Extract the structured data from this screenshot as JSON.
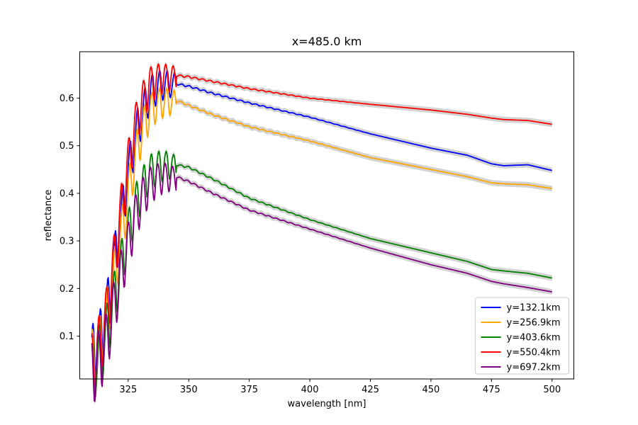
{
  "chart_data": {
    "type": "line",
    "title": "x=485.0 km",
    "xlabel": "wavelength [nm]",
    "ylabel": "reflectance",
    "xlim": [
      305,
      509
    ],
    "ylim": [
      0.01,
      0.6975
    ],
    "xticks": [
      325,
      350,
      375,
      400,
      425,
      450,
      475,
      500
    ],
    "yticks": [
      0.1,
      0.2,
      0.3,
      0.4,
      0.5,
      0.6
    ],
    "grid": false,
    "legend_position": "lower-right",
    "band_color": "#d3d3d3",
    "series": [
      {
        "name": "y=132.1km",
        "color": "#0000ff",
        "points": [
          [
            310,
            0.05
          ],
          [
            313,
            0.08
          ],
          [
            316,
            0.14
          ],
          [
            319,
            0.24
          ],
          [
            322,
            0.34
          ],
          [
            325,
            0.44
          ],
          [
            328,
            0.52
          ],
          [
            331,
            0.57
          ],
          [
            334,
            0.61
          ],
          [
            337,
            0.625
          ],
          [
            340,
            0.63
          ],
          [
            345,
            0.63
          ],
          [
            350,
            0.625
          ],
          [
            360,
            0.61
          ],
          [
            375,
            0.59
          ],
          [
            400,
            0.56
          ],
          [
            425,
            0.525
          ],
          [
            450,
            0.495
          ],
          [
            465,
            0.48
          ],
          [
            475,
            0.462
          ],
          [
            480,
            0.458
          ],
          [
            490,
            0.46
          ],
          [
            500,
            0.448
          ]
        ]
      },
      {
        "name": "y=256.9km",
        "color": "#ffa500",
        "points": [
          [
            310,
            0.045
          ],
          [
            313,
            0.075
          ],
          [
            316,
            0.13
          ],
          [
            319,
            0.22
          ],
          [
            322,
            0.31
          ],
          [
            325,
            0.4
          ],
          [
            328,
            0.48
          ],
          [
            331,
            0.54
          ],
          [
            334,
            0.575
          ],
          [
            337,
            0.59
          ],
          [
            340,
            0.595
          ],
          [
            345,
            0.595
          ],
          [
            350,
            0.585
          ],
          [
            360,
            0.565
          ],
          [
            375,
            0.54
          ],
          [
            400,
            0.51
          ],
          [
            425,
            0.475
          ],
          [
            450,
            0.45
          ],
          [
            465,
            0.435
          ],
          [
            475,
            0.422
          ],
          [
            480,
            0.42
          ],
          [
            490,
            0.418
          ],
          [
            500,
            0.41
          ]
        ]
      },
      {
        "name": "y=403.6km",
        "color": "#008000",
        "points": [
          [
            310,
            0.04
          ],
          [
            313,
            0.065
          ],
          [
            316,
            0.11
          ],
          [
            319,
            0.18
          ],
          [
            322,
            0.25
          ],
          [
            325,
            0.32
          ],
          [
            328,
            0.38
          ],
          [
            331,
            0.42
          ],
          [
            334,
            0.45
          ],
          [
            337,
            0.46
          ],
          [
            340,
            0.465
          ],
          [
            345,
            0.46
          ],
          [
            350,
            0.455
          ],
          [
            360,
            0.43
          ],
          [
            375,
            0.39
          ],
          [
            400,
            0.345
          ],
          [
            425,
            0.305
          ],
          [
            450,
            0.275
          ],
          [
            465,
            0.257
          ],
          [
            475,
            0.24
          ],
          [
            480,
            0.237
          ],
          [
            490,
            0.232
          ],
          [
            500,
            0.222
          ]
        ]
      },
      {
        "name": "y=550.4km",
        "color": "#ff0000",
        "points": [
          [
            310,
            0.05
          ],
          [
            313,
            0.09
          ],
          [
            316,
            0.15
          ],
          [
            319,
            0.26
          ],
          [
            322,
            0.37
          ],
          [
            325,
            0.47
          ],
          [
            328,
            0.55
          ],
          [
            331,
            0.6
          ],
          [
            334,
            0.635
          ],
          [
            337,
            0.645
          ],
          [
            340,
            0.648
          ],
          [
            345,
            0.648
          ],
          [
            350,
            0.645
          ],
          [
            360,
            0.635
          ],
          [
            375,
            0.62
          ],
          [
            400,
            0.6
          ],
          [
            425,
            0.587
          ],
          [
            450,
            0.575
          ],
          [
            465,
            0.566
          ],
          [
            475,
            0.558
          ],
          [
            480,
            0.555
          ],
          [
            490,
            0.553
          ],
          [
            500,
            0.545
          ]
        ]
      },
      {
        "name": "y=697.2km",
        "color": "#800080",
        "points": [
          [
            310,
            0.04
          ],
          [
            313,
            0.06
          ],
          [
            316,
            0.1
          ],
          [
            319,
            0.17
          ],
          [
            322,
            0.24
          ],
          [
            325,
            0.3
          ],
          [
            328,
            0.36
          ],
          [
            331,
            0.4
          ],
          [
            334,
            0.425
          ],
          [
            337,
            0.435
          ],
          [
            340,
            0.44
          ],
          [
            345,
            0.435
          ],
          [
            350,
            0.425
          ],
          [
            360,
            0.4
          ],
          [
            375,
            0.365
          ],
          [
            400,
            0.325
          ],
          [
            425,
            0.285
          ],
          [
            450,
            0.25
          ],
          [
            465,
            0.232
          ],
          [
            475,
            0.215
          ],
          [
            480,
            0.21
          ],
          [
            490,
            0.202
          ],
          [
            500,
            0.193
          ]
        ]
      }
    ]
  }
}
